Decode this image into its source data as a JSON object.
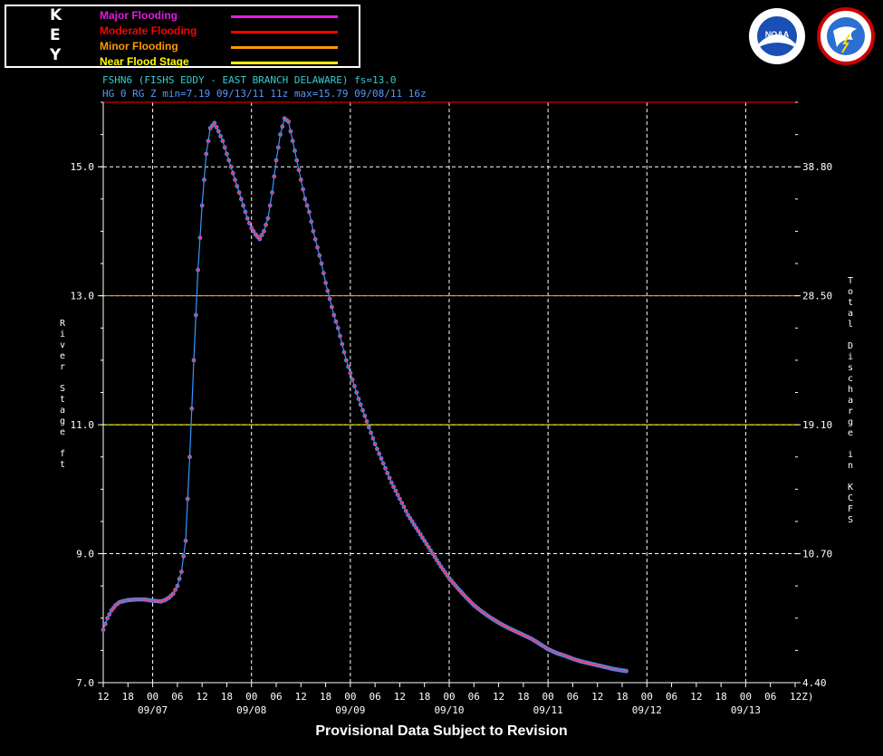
{
  "key": {
    "letters": [
      "K",
      "E",
      "Y"
    ],
    "items": [
      {
        "label": "Major Flooding",
        "color": "#e11be1"
      },
      {
        "label": "Moderate Flooding",
        "color": "#ff0000"
      },
      {
        "label": "Minor Flooding",
        "color": "#ff9900"
      },
      {
        "label": "Near Flood Stage",
        "color": "#ffff00"
      }
    ]
  },
  "header": {
    "line1": "FSHN6 (FISHS EDDY - EAST BRANCH DELAWARE) fs=13.0",
    "line2": "HG 0 RG Z min=7.19 09/13/11 11z max=15.79 09/08/11 16z"
  },
  "footer": "Provisional Data Subject to Revision",
  "logos": [
    {
      "icon": "noaa-logo-icon"
    },
    {
      "icon": "nws-logo-icon"
    }
  ],
  "chart_data": {
    "type": "line",
    "ylabel": "River Stage ft",
    "y2label": "Total Discharge in KCFS",
    "ylim": [
      7.0,
      16.0
    ],
    "y_ticks": [
      {
        "value": 7.0,
        "label": "7.0",
        "right": "4.40"
      },
      {
        "value": 9.0,
        "label": "9.0",
        "right": "10.70"
      },
      {
        "value": 11.0,
        "label": "11.0",
        "right": "19.10"
      },
      {
        "value": 13.0,
        "label": "13.0",
        "right": "28.50"
      },
      {
        "value": 15.0,
        "label": "15.0",
        "right": "38.80"
      }
    ],
    "thresholds": [
      {
        "name": "Moderate Flooding",
        "value": 16.0,
        "color": "#ff0000"
      },
      {
        "name": "Minor Flooding",
        "value": 13.0,
        "color": "#ff9900"
      },
      {
        "name": "Near Flood Stage",
        "value": 11.0,
        "color": "#ffff00"
      }
    ],
    "x_unit": "hours since 09/06 12Z",
    "xlim": [
      0,
      168
    ],
    "x_hour_labels": [
      "12",
      "18",
      "00",
      "06",
      "12",
      "18",
      "00",
      "06",
      "12",
      "18",
      "00",
      "06",
      "12",
      "18",
      "00",
      "06",
      "12",
      "18",
      "00",
      "06",
      "12",
      "18",
      "00",
      "06",
      "12",
      "18",
      "00",
      "06",
      "12"
    ],
    "x_zone_suffix": "Z)",
    "x_day_labels": [
      {
        "x": 12,
        "label": "09/07"
      },
      {
        "x": 36,
        "label": "09/08"
      },
      {
        "x": 60,
        "label": "09/09"
      },
      {
        "x": 84,
        "label": "09/10"
      },
      {
        "x": 108,
        "label": "09/11"
      },
      {
        "x": 132,
        "label": "09/12"
      },
      {
        "x": 156,
        "label": "09/13"
      }
    ],
    "series": [
      {
        "line_color": "#3399ff",
        "marker_color": "#ff3366",
        "points": [
          [
            0,
            7.82
          ],
          [
            1,
            8.0
          ],
          [
            2,
            8.12
          ],
          [
            3,
            8.2
          ],
          [
            4,
            8.25
          ],
          [
            6,
            8.28
          ],
          [
            8,
            8.29
          ],
          [
            10,
            8.29
          ],
          [
            12,
            8.27
          ],
          [
            14,
            8.26
          ],
          [
            15,
            8.28
          ],
          [
            16,
            8.32
          ],
          [
            17,
            8.38
          ],
          [
            18,
            8.5
          ],
          [
            19,
            8.72
          ],
          [
            20,
            9.2
          ],
          [
            21,
            10.5
          ],
          [
            22,
            12.0
          ],
          [
            23,
            13.4
          ],
          [
            24,
            14.4
          ],
          [
            25,
            15.2
          ],
          [
            26,
            15.6
          ],
          [
            27,
            15.68
          ],
          [
            28,
            15.55
          ],
          [
            29,
            15.4
          ],
          [
            30,
            15.2
          ],
          [
            31,
            15.0
          ],
          [
            32,
            14.8
          ],
          [
            33,
            14.6
          ],
          [
            34,
            14.4
          ],
          [
            35,
            14.2
          ],
          [
            36,
            14.05
          ],
          [
            37,
            13.95
          ],
          [
            38,
            13.88
          ],
          [
            39,
            14.0
          ],
          [
            40,
            14.2
          ],
          [
            41,
            14.6
          ],
          [
            42,
            15.1
          ],
          [
            43,
            15.5
          ],
          [
            44,
            15.75
          ],
          [
            45,
            15.7
          ],
          [
            46,
            15.4
          ],
          [
            47,
            15.1
          ],
          [
            48,
            14.8
          ],
          [
            49,
            14.5
          ],
          [
            50,
            14.3
          ],
          [
            51,
            14.0
          ],
          [
            52,
            13.75
          ],
          [
            53,
            13.5
          ],
          [
            54,
            13.2
          ],
          [
            55,
            12.95
          ],
          [
            56,
            12.7
          ],
          [
            57,
            12.5
          ],
          [
            58,
            12.25
          ],
          [
            59,
            12.0
          ],
          [
            60,
            11.8
          ],
          [
            62,
            11.4
          ],
          [
            64,
            11.05
          ],
          [
            66,
            10.7
          ],
          [
            68,
            10.4
          ],
          [
            70,
            10.1
          ],
          [
            72,
            9.85
          ],
          [
            74,
            9.6
          ],
          [
            76,
            9.4
          ],
          [
            78,
            9.2
          ],
          [
            80,
            9.0
          ],
          [
            82,
            8.8
          ],
          [
            84,
            8.62
          ],
          [
            86,
            8.47
          ],
          [
            88,
            8.33
          ],
          [
            90,
            8.2
          ],
          [
            92,
            8.1
          ],
          [
            94,
            8.01
          ],
          [
            96,
            7.93
          ],
          [
            98,
            7.86
          ],
          [
            100,
            7.8
          ],
          [
            102,
            7.74
          ],
          [
            104,
            7.68
          ],
          [
            106,
            7.6
          ],
          [
            108,
            7.52
          ],
          [
            110,
            7.46
          ],
          [
            112,
            7.42
          ],
          [
            114,
            7.37
          ],
          [
            116,
            7.33
          ],
          [
            118,
            7.3
          ],
          [
            120,
            7.27
          ],
          [
            122,
            7.24
          ],
          [
            124,
            7.21
          ],
          [
            126,
            7.19
          ],
          [
            127,
            7.18
          ]
        ]
      }
    ]
  }
}
